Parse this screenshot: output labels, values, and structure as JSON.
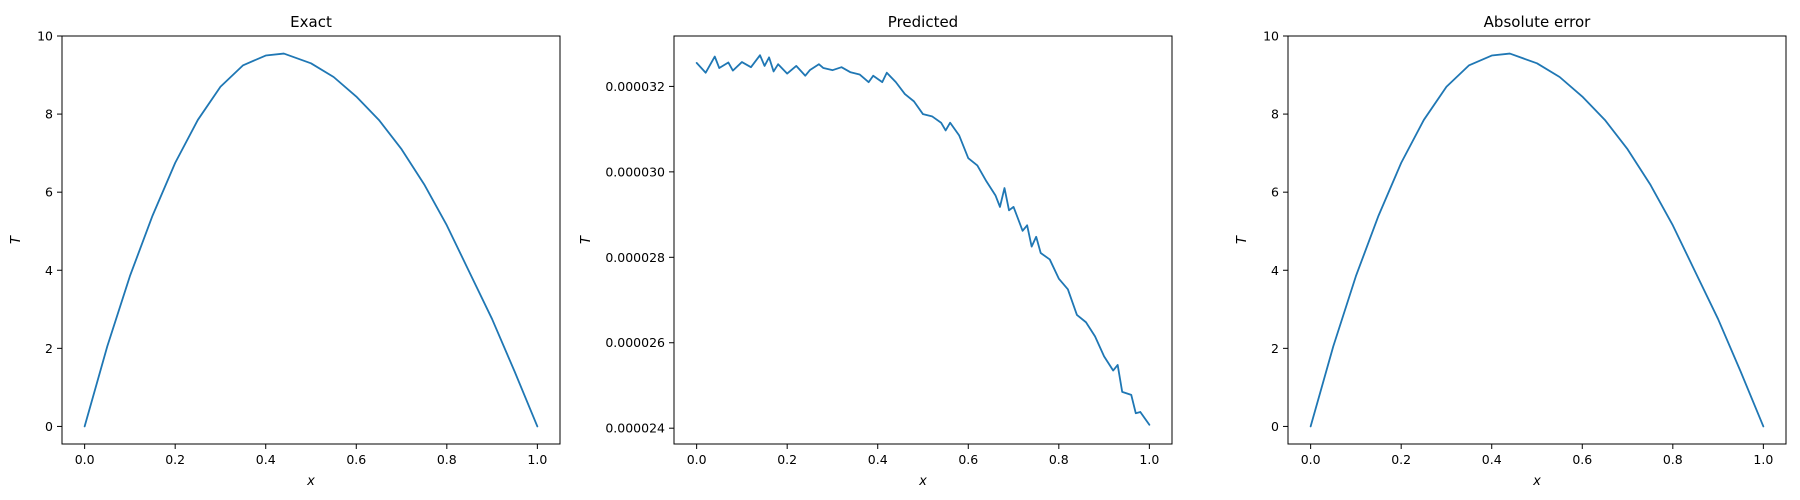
{
  "colors": {
    "series": "#1f77b4"
  },
  "chart_data": [
    {
      "type": "line",
      "title": "Exact",
      "xlabel": "x",
      "ylabel": "T",
      "xlim": [
        -0.05,
        1.05
      ],
      "ylim": [
        -0.45,
        10.0
      ],
      "xticks": [
        0,
        0.2,
        0.4,
        0.6,
        0.8,
        1.0
      ],
      "xtick_labels": [
        "0.0",
        "0.2",
        "0.4",
        "0.6",
        "0.8",
        "1.0"
      ],
      "yticks": [
        0,
        2,
        4,
        6,
        8,
        10
      ],
      "ytick_labels": [
        "0",
        "2",
        "4",
        "6",
        "8",
        "10"
      ],
      "grid": false,
      "series": [
        {
          "x": [
            0.0,
            0.05,
            0.1,
            0.15,
            0.2,
            0.25,
            0.3,
            0.35,
            0.4,
            0.44,
            0.5,
            0.55,
            0.6,
            0.65,
            0.7,
            0.75,
            0.8,
            0.85,
            0.9,
            0.95,
            1.0
          ],
          "y": [
            0.0,
            2.05,
            3.85,
            5.4,
            6.75,
            7.85,
            8.7,
            9.25,
            9.5,
            9.55,
            9.3,
            8.95,
            8.45,
            7.85,
            7.1,
            6.2,
            5.15,
            3.95,
            2.75,
            1.4,
            0.0
          ]
        }
      ]
    },
    {
      "type": "line",
      "title": "Predicted",
      "xlabel": "x",
      "ylabel": "T",
      "xlim": [
        -0.05,
        1.05
      ],
      "ylim": [
        2.363e-05,
        3.318e-05
      ],
      "xticks": [
        0,
        0.2,
        0.4,
        0.6,
        0.8,
        1.0
      ],
      "xtick_labels": [
        "0.0",
        "0.2",
        "0.4",
        "0.6",
        "0.8",
        "1.0"
      ],
      "yticks": [
        2.4e-05,
        2.6e-05,
        2.8e-05,
        3e-05,
        3.2e-05
      ],
      "ytick_labels": [
        "0.000024",
        "0.000026",
        "0.000028",
        "0.000030",
        "0.000032"
      ],
      "grid": false,
      "series": [
        {
          "x": [
            0.0,
            0.02,
            0.04,
            0.05,
            0.07,
            0.08,
            0.1,
            0.12,
            0.14,
            0.15,
            0.16,
            0.17,
            0.18,
            0.2,
            0.22,
            0.24,
            0.25,
            0.27,
            0.28,
            0.3,
            0.32,
            0.34,
            0.36,
            0.38,
            0.39,
            0.41,
            0.42,
            0.44,
            0.46,
            0.48,
            0.5,
            0.52,
            0.54,
            0.55,
            0.56,
            0.58,
            0.6,
            0.62,
            0.64,
            0.66,
            0.67,
            0.68,
            0.69,
            0.7,
            0.72,
            0.73,
            0.74,
            0.75,
            0.76,
            0.78,
            0.8,
            0.82,
            0.84,
            0.86,
            0.88,
            0.9,
            0.92,
            0.93,
            0.94,
            0.96,
            0.97,
            0.98,
            1.0
          ],
          "y": [
            3.255e-05,
            3.232e-05,
            3.27e-05,
            3.243e-05,
            3.256e-05,
            3.237e-05,
            3.257e-05,
            3.245e-05,
            3.273e-05,
            3.248e-05,
            3.268e-05,
            3.235e-05,
            3.252e-05,
            3.23e-05,
            3.248e-05,
            3.225e-05,
            3.238e-05,
            3.252e-05,
            3.243e-05,
            3.238e-05,
            3.245e-05,
            3.233e-05,
            3.228e-05,
            3.21e-05,
            3.225e-05,
            3.21e-05,
            3.232e-05,
            3.21e-05,
            3.182e-05,
            3.165e-05,
            3.135e-05,
            3.13e-05,
            3.115e-05,
            3.097e-05,
            3.115e-05,
            3.085e-05,
            3.032e-05,
            3.015e-05,
            2.978e-05,
            2.945e-05,
            2.918e-05,
            2.962e-05,
            2.91e-05,
            2.918e-05,
            2.862e-05,
            2.875e-05,
            2.825e-05,
            2.848e-05,
            2.81e-05,
            2.795e-05,
            2.75e-05,
            2.725e-05,
            2.665e-05,
            2.648e-05,
            2.615e-05,
            2.568e-05,
            2.535e-05,
            2.548e-05,
            2.485e-05,
            2.478e-05,
            2.435e-05,
            2.438e-05,
            2.408e-05
          ]
        }
      ]
    },
    {
      "type": "line",
      "title": "Absolute error",
      "xlabel": "x",
      "ylabel": "T",
      "xlim": [
        -0.05,
        1.05
      ],
      "ylim": [
        -0.45,
        10.0
      ],
      "xticks": [
        0,
        0.2,
        0.4,
        0.6,
        0.8,
        1.0
      ],
      "xtick_labels": [
        "0.0",
        "0.2",
        "0.4",
        "0.6",
        "0.8",
        "1.0"
      ],
      "yticks": [
        0,
        2,
        4,
        6,
        8,
        10
      ],
      "ytick_labels": [
        "0",
        "2",
        "4",
        "6",
        "8",
        "10"
      ],
      "grid": false,
      "series": [
        {
          "x": [
            0.0,
            0.05,
            0.1,
            0.15,
            0.2,
            0.25,
            0.3,
            0.35,
            0.4,
            0.44,
            0.5,
            0.55,
            0.6,
            0.65,
            0.7,
            0.75,
            0.8,
            0.85,
            0.9,
            0.95,
            1.0
          ],
          "y": [
            0.0,
            2.05,
            3.85,
            5.4,
            6.75,
            7.85,
            8.7,
            9.25,
            9.5,
            9.55,
            9.3,
            8.95,
            8.45,
            7.85,
            7.1,
            6.2,
            5.15,
            3.95,
            2.75,
            1.4,
            0.0
          ]
        }
      ]
    }
  ]
}
